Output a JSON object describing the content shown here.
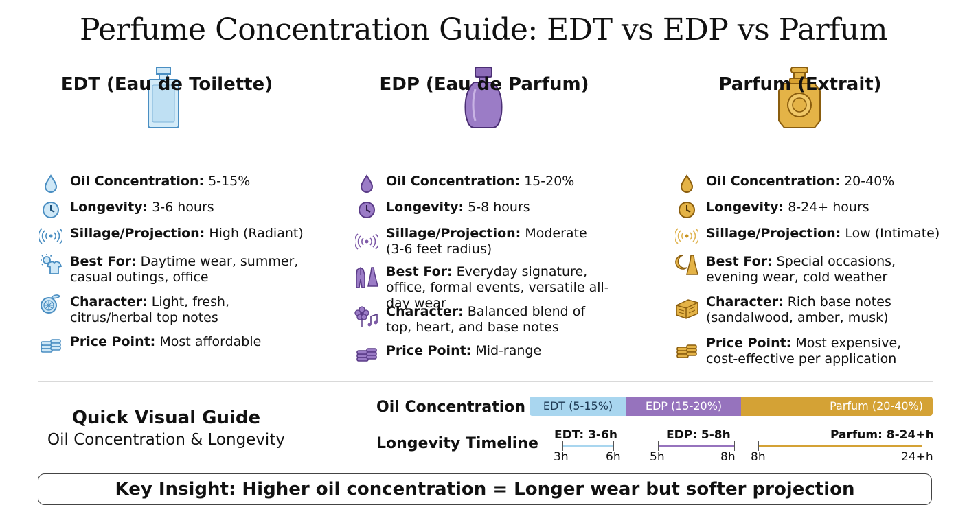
{
  "title": "Perfume Concentration Guide: EDT vs EDP vs Parfum",
  "colors": {
    "edt": "#a9d6ef",
    "edp": "#9673bd",
    "parfum": "#d4a235",
    "edt_icon": "#4a8ec2",
    "edp_icon": "#7e5aa8",
    "parfum_icon": "#c6921f"
  },
  "columns": [
    {
      "heading": "EDT (Eau de Toilette)",
      "rows": [
        {
          "icon": "drop-icon",
          "label": "Oil Concentration:",
          "text": "5-15%"
        },
        {
          "icon": "clock-icon",
          "label": "Longevity:",
          "text": "3-6 hours"
        },
        {
          "icon": "waves-icon",
          "label": "Sillage/Projection:",
          "text": "High (Radiant)"
        },
        {
          "icon": "sun-shirt-icon",
          "label": "Best For:",
          "text": "Daytime wear, summer, casual outings, office"
        },
        {
          "icon": "citrus-icon",
          "label": "Character:",
          "text": "Light, fresh, citrus/herbal top notes"
        },
        {
          "icon": "coins-icon",
          "label": "Price Point:",
          "text": "Most affordable"
        }
      ]
    },
    {
      "heading": "EDP (Eau de Parfum)",
      "rows": [
        {
          "icon": "drop-icon",
          "label": "Oil Concentration:",
          "text": "15-20%"
        },
        {
          "icon": "clock-icon",
          "label": "Longevity:",
          "text": "5-8 hours"
        },
        {
          "icon": "waves-icon",
          "label": "Sillage/Projection:",
          "text": "Moderate (3-6 feet radius)"
        },
        {
          "icon": "suit-dress-icon",
          "label": "Best For:",
          "text": "Everyday signature, office, formal events, versatile all-day wear"
        },
        {
          "icon": "flower-music-icon",
          "label": "Character:",
          "text": "Balanced blend of top, heart, and base notes"
        },
        {
          "icon": "coins-icon",
          "label": "Price Point:",
          "text": "Mid-range"
        }
      ]
    },
    {
      "heading": "Parfum (Extrait)",
      "rows": [
        {
          "icon": "drop-icon",
          "label": "Oil Concentration:",
          "text": "20-40%"
        },
        {
          "icon": "clock-icon",
          "label": "Longevity:",
          "text": "8-24+ hours"
        },
        {
          "icon": "waves-icon",
          "label": "Sillage/Projection:",
          "text": "Low (Intimate)"
        },
        {
          "icon": "moon-dress-icon",
          "label": "Best For:",
          "text": "Special occasions, evening wear, cold weather"
        },
        {
          "icon": "wood-icon",
          "label": "Character:",
          "text": "Rich base notes (sandalwood, amber, musk)"
        },
        {
          "icon": "coins-icon",
          "label": "Price Point:",
          "text": "Most expensive, cost-effective per application"
        }
      ]
    }
  ],
  "quick_guide": {
    "title": "Quick Visual Guide",
    "subtitle": "Oil Concentration & Longevity",
    "oil_label": "Oil Concentration",
    "oil_segments": [
      {
        "name": "EDT (5-15%)",
        "from": 5,
        "to": 15
      },
      {
        "name": "EDP (15-20%)",
        "from": 15,
        "to": 20
      },
      {
        "name": "Parfum (20-40%)",
        "from": 20,
        "to": 40
      }
    ],
    "timeline_label": "Longevity Timeline",
    "timeline": [
      {
        "label": "EDT: 3-6h",
        "start": "3h",
        "end": "6h"
      },
      {
        "label": "EDP: 5-8h",
        "start": "5h",
        "end": "8h"
      },
      {
        "label": "Parfum: 8-24+h",
        "start": "8h",
        "end": "24+h"
      }
    ]
  },
  "insight": "Key Insight: Higher oil concentration = Longer wear but softer projection"
}
